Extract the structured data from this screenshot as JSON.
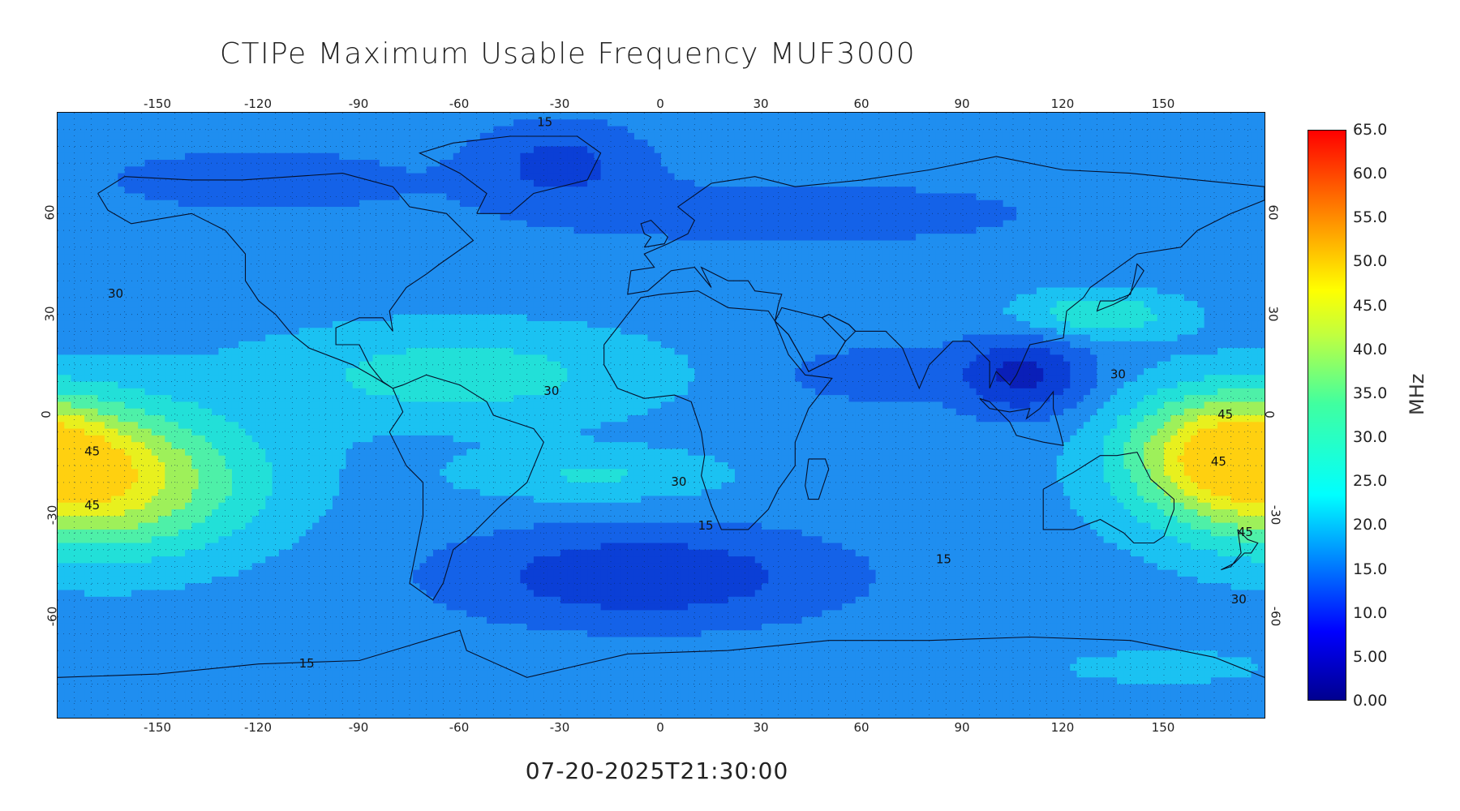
{
  "title": "CTIPe Maximum Usable Frequency MUF3000",
  "timestamp": "07-20-2025T21:30:00",
  "map": {
    "lon_ticks": [
      "-150",
      "-120",
      "-90",
      "-60",
      "-30",
      "0",
      "30",
      "60",
      "90",
      "120",
      "150"
    ],
    "lat_ticks": [
      "60",
      "30",
      "0",
      "-30",
      "-60"
    ],
    "contour_labels": [
      {
        "text": "15",
        "lon": -37,
        "lat": 86
      },
      {
        "text": "30",
        "lon": -165,
        "lat": 35
      },
      {
        "text": "30",
        "lon": -35,
        "lat": 6
      },
      {
        "text": "30",
        "lon": 3,
        "lat": -21
      },
      {
        "text": "45",
        "lon": -172,
        "lat": -12
      },
      {
        "text": "45",
        "lon": -172,
        "lat": -28
      },
      {
        "text": "15",
        "lon": 11,
        "lat": -34
      },
      {
        "text": "15",
        "lon": 82,
        "lat": -44
      },
      {
        "text": "15",
        "lon": -108,
        "lat": -75
      },
      {
        "text": "30",
        "lon": 134,
        "lat": 11
      },
      {
        "text": "45",
        "lon": 166,
        "lat": -1
      },
      {
        "text": "45",
        "lon": 164,
        "lat": -15
      },
      {
        "text": "45",
        "lon": 172,
        "lat": -36
      },
      {
        "text": "30",
        "lon": 170,
        "lat": -56
      }
    ]
  },
  "colorbar": {
    "unit": "MHz",
    "min": 0,
    "max": 65,
    "labels": [
      "65.0",
      "60.0",
      "55.0",
      "50.0",
      "45.0",
      "40.0",
      "35.0",
      "30.0",
      "25.0",
      "20.0",
      "15.0",
      "10.0",
      "5.00",
      "0.00"
    ]
  },
  "colors": {
    "contour_levels": [
      {
        "min": 0,
        "max": 7.5,
        "color": "#0a1fb8"
      },
      {
        "min": 7.5,
        "max": 12.5,
        "color": "#0b3fd6"
      },
      {
        "min": 12.5,
        "max": 17.5,
        "color": "#1462e8"
      },
      {
        "min": 17.5,
        "max": 22.5,
        "color": "#1f8ef0"
      },
      {
        "min": 22.5,
        "max": 27.5,
        "color": "#1bc2f2"
      },
      {
        "min": 27.5,
        "max": 32.5,
        "color": "#22e0d8"
      },
      {
        "min": 32.5,
        "max": 37.5,
        "color": "#4ef0a8"
      },
      {
        "min": 37.5,
        "max": 42.5,
        "color": "#9ef05a"
      },
      {
        "min": 42.5,
        "max": 47.5,
        "color": "#e8f01e"
      },
      {
        "min": 47.5,
        "max": 65,
        "color": "#ffd010"
      }
    ]
  }
}
